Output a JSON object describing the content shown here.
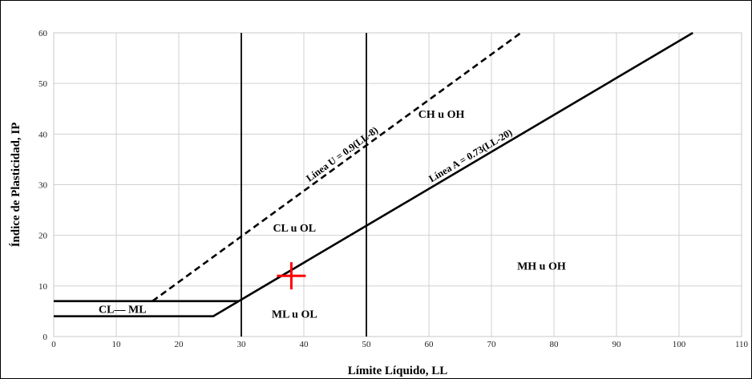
{
  "chart_data": {
    "type": "line",
    "xlabel": "Límite Líquido, LL",
    "ylabel": "Índice de Plasticidad, IP",
    "xlim": [
      0,
      110
    ],
    "ylim": [
      0,
      60
    ],
    "xticks": [
      "0",
      "10",
      "20",
      "30",
      "40",
      "50",
      "60",
      "70",
      "80",
      "90",
      "100",
      "110"
    ],
    "yticks": [
      "0",
      "10",
      "20",
      "30",
      "40",
      "50",
      "60"
    ],
    "grid": true,
    "line_a": {
      "label": "Línea A = 0.73(LL-20)",
      "points": [
        [
          0,
          4
        ],
        [
          25.5,
          4
        ],
        [
          102.2,
          60
        ]
      ]
    },
    "line_u": {
      "label": "Línea U = 0.9(LL-8)",
      "points": [
        [
          15.8,
          7
        ],
        [
          74.7,
          60
        ]
      ]
    },
    "cl_ml_upper": {
      "points": [
        [
          0,
          7
        ],
        [
          29.6,
          7
        ]
      ]
    },
    "vertical_lines_x": [
      30,
      50
    ],
    "zones": [
      {
        "label": "CL— ML",
        "x": 11,
        "y": 5.5
      },
      {
        "label": "CL  u  OL",
        "x": 38.5,
        "y": 21.5
      },
      {
        "label": "ML  u OL",
        "x": 38.5,
        "y": 4.5
      },
      {
        "label": "CH  u OH",
        "x": 62,
        "y": 44
      },
      {
        "label": "MH  u OH",
        "x": 78,
        "y": 14
      }
    ],
    "marker": {
      "symbol": "+",
      "color": "#ff0000",
      "x": 38,
      "y": 12
    }
  }
}
